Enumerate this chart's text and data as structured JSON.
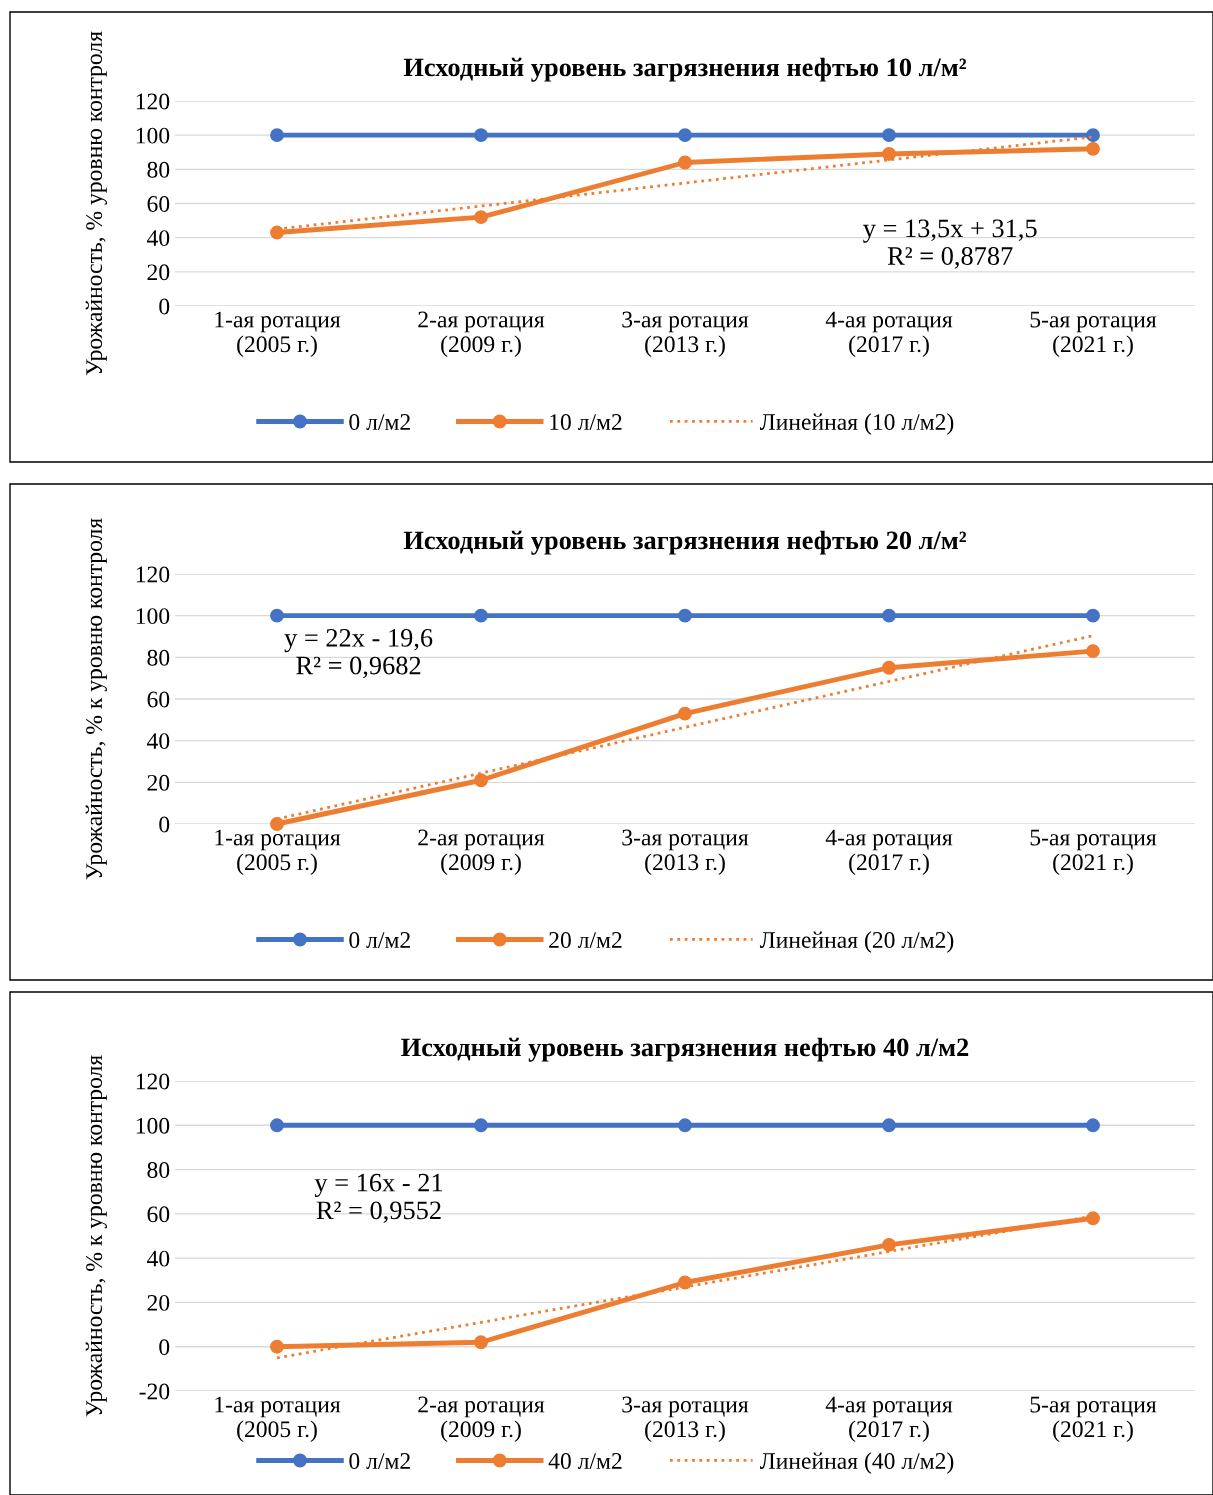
{
  "chart_data": [
    {
      "type": "line",
      "title": "Исходный уровень загрязнения нефтью 10 л/м²",
      "ylabel": "Урожайность, % уровню контроля",
      "categories": [
        "1-ая ротация\n(2005 г.)",
        "2-ая ротация\n(2009 г.)",
        "3-ая ротация\n(2013 г.)",
        "4-ая ротация\n(2017 г.)",
        "5-ая ротация\n(2021 г.)"
      ],
      "ylim": [
        0,
        120
      ],
      "yticks": [
        0,
        20,
        40,
        60,
        80,
        100,
        120
      ],
      "grid": "y",
      "legend": "bottom",
      "annotations": [
        "y = 13,5x + 31,5\nR² = 0,8787"
      ],
      "series": [
        {
          "name": "0 л/м2",
          "color": "#4472c4",
          "values": [
            100,
            100,
            100,
            100,
            100
          ],
          "marker": "circle",
          "line_style": "solid"
        },
        {
          "name": "10 л/м2",
          "color": "#ed7d31",
          "values": [
            43,
            52,
            84,
            89,
            92
          ],
          "marker": "circle",
          "line_style": "solid"
        },
        {
          "name": "Линейная (10 л/м2)",
          "color": "#ed7d31",
          "values": [
            45,
            58.5,
            72,
            85.5,
            99
          ],
          "marker": "none",
          "line_style": "dotted"
        }
      ]
    },
    {
      "type": "line",
      "title": "Исходный уровень загрязнения нефтью 20 л/м²",
      "ylabel": "Урожайность, % к уровню контроля",
      "categories": [
        "1-ая ротация\n(2005 г.)",
        "2-ая ротация\n(2009 г.)",
        "3-ая ротация\n(2013 г.)",
        "4-ая ротация\n(2017 г.)",
        "5-ая ротация\n(2021 г.)"
      ],
      "ylim": [
        0,
        120
      ],
      "yticks": [
        0,
        20,
        40,
        60,
        80,
        100,
        120
      ],
      "grid": "y",
      "legend": "bottom",
      "annotations": [
        "y = 22x - 19,6\nR² = 0,9682"
      ],
      "series": [
        {
          "name": "0 л/м2",
          "color": "#4472c4",
          "values": [
            100,
            100,
            100,
            100,
            100
          ],
          "marker": "circle",
          "line_style": "solid"
        },
        {
          "name": "20 л/м2",
          "color": "#ed7d31",
          "values": [
            0,
            21,
            53,
            75,
            83
          ],
          "marker": "circle",
          "line_style": "solid"
        },
        {
          "name": "Линейная (20 л/м2)",
          "color": "#ed7d31",
          "values": [
            2.4,
            24.4,
            46.4,
            68.4,
            90.4
          ],
          "marker": "none",
          "line_style": "dotted"
        }
      ]
    },
    {
      "type": "line",
      "title": "Исходный уровень загрязнения нефтью 40 л/м2",
      "ylabel": "Урожайность, % к уровню контроля",
      "categories": [
        "1-ая ротация\n(2005 г.)",
        "2-ая ротация\n(2009 г.)",
        "3-ая ротация\n(2013 г.)",
        "4-ая ротация\n(2017 г.)",
        "5-ая ротация\n(2021 г.)"
      ],
      "ylim": [
        -20,
        120
      ],
      "yticks": [
        -20,
        0,
        20,
        40,
        60,
        80,
        100,
        120
      ],
      "grid": "y",
      "legend": "bottom",
      "annotations": [
        "y = 16x - 21\nR² = 0,9552"
      ],
      "series": [
        {
          "name": "0 л/м2",
          "color": "#4472c4",
          "values": [
            100,
            100,
            100,
            100,
            100
          ],
          "marker": "circle",
          "line_style": "solid"
        },
        {
          "name": "40 л/м2",
          "color": "#ed7d31",
          "values": [
            0,
            2,
            29,
            46,
            58
          ],
          "marker": "circle",
          "line_style": "solid"
        },
        {
          "name": "Линейная (40 л/м2)",
          "color": "#ed7d31",
          "values": [
            -5,
            11,
            27,
            43,
            59
          ],
          "marker": "none",
          "line_style": "dotted"
        }
      ]
    }
  ]
}
